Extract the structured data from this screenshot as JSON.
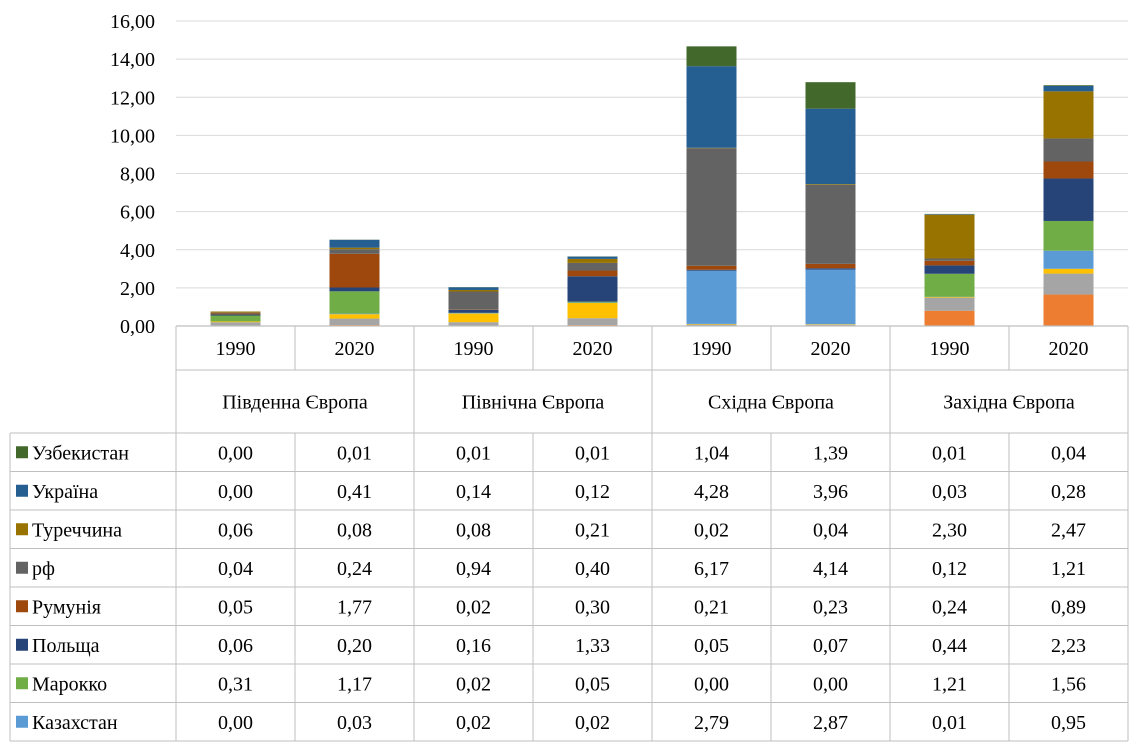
{
  "chart_data": {
    "type": "bar",
    "stacked": true,
    "groups": [
      "Південна Європа",
      "Північна Європа",
      "Східна Європа",
      "Західна Європа"
    ],
    "years": [
      "1990",
      "2020"
    ],
    "categories": [
      "Південна Європа 1990",
      "Південна Європа 2020",
      "Північна Європа 1990",
      "Північна Європа 2020",
      "Східна Європа 1990",
      "Східна Європа 2020",
      "Західна Європа 1990",
      "Західна Європа 2020"
    ],
    "ylim": [
      0,
      16
    ],
    "yticks": [
      "0,00",
      "2,00",
      "4,00",
      "6,00",
      "8,00",
      "10,00",
      "12,00",
      "14,00",
      "16,00"
    ],
    "grid": true,
    "legend": "data-table",
    "table_series": [
      {
        "name": "Узбекистан",
        "color": "#43682b",
        "values": [
          0.0,
          0.01,
          0.01,
          0.01,
          1.04,
          1.39,
          0.01,
          0.04
        ],
        "labels": [
          "0,00",
          "0,01",
          "0,01",
          "0,01",
          "1,04",
          "1,39",
          "0,01",
          "0,04"
        ]
      },
      {
        "name": "Україна",
        "color": "#255e91",
        "values": [
          0.0,
          0.41,
          0.14,
          0.12,
          4.28,
          3.96,
          0.03,
          0.28
        ],
        "labels": [
          "0,00",
          "0,41",
          "0,14",
          "0,12",
          "4,28",
          "3,96",
          "0,03",
          "0,28"
        ]
      },
      {
        "name": "Туреччина",
        "color": "#997300",
        "values": [
          0.06,
          0.08,
          0.08,
          0.21,
          0.02,
          0.04,
          2.3,
          2.47
        ],
        "labels": [
          "0,06",
          "0,08",
          "0,08",
          "0,21",
          "0,02",
          "0,04",
          "2,30",
          "2,47"
        ]
      },
      {
        "name": "рф",
        "color": "#636363",
        "values": [
          0.04,
          0.24,
          0.94,
          0.4,
          6.17,
          4.14,
          0.12,
          1.21
        ],
        "labels": [
          "0,04",
          "0,24",
          "0,94",
          "0,40",
          "6,17",
          "4,14",
          "0,12",
          "1,21"
        ]
      },
      {
        "name": "Румунія",
        "color": "#9e480e",
        "values": [
          0.05,
          1.77,
          0.02,
          0.3,
          0.21,
          0.23,
          0.24,
          0.89
        ],
        "labels": [
          "0,05",
          "1,77",
          "0,02",
          "0,30",
          "0,21",
          "0,23",
          "0,24",
          "0,89"
        ]
      },
      {
        "name": "Польща",
        "color": "#264478",
        "values": [
          0.06,
          0.2,
          0.16,
          1.33,
          0.05,
          0.07,
          0.44,
          2.23
        ],
        "labels": [
          "0,06",
          "0,20",
          "0,16",
          "1,33",
          "0,05",
          "0,07",
          "0,44",
          "2,23"
        ]
      },
      {
        "name": "Марокко",
        "color": "#70ad47",
        "values": [
          0.31,
          1.17,
          0.02,
          0.05,
          0.0,
          0.0,
          1.21,
          1.56
        ],
        "labels": [
          "0,31",
          "1,17",
          "0,02",
          "0,05",
          "0,00",
          "0,00",
          "1,21",
          "1,56"
        ]
      },
      {
        "name": "Казахстан",
        "color": "#5b9bd5",
        "values": [
          0.0,
          0.03,
          0.02,
          0.02,
          2.79,
          2.87,
          0.01,
          0.95
        ],
        "labels": [
          "0,00",
          "0,03",
          "0,02",
          "0,02",
          "2,79",
          "2,87",
          "0,01",
          "0,95"
        ]
      }
    ],
    "other_series": [
      {
        "color": "#ffc000",
        "values": [
          0.04,
          0.23,
          0.45,
          0.8,
          0.03,
          0.03,
          0.03,
          0.25
        ]
      },
      {
        "color": "#a5a5a5",
        "values": [
          0.18,
          0.34,
          0.18,
          0.36,
          0.06,
          0.04,
          0.69,
          1.1
        ]
      },
      {
        "color": "#ed7d31",
        "values": [
          0.02,
          0.05,
          0.02,
          0.05,
          0.02,
          0.02,
          0.8,
          1.65
        ]
      }
    ]
  }
}
